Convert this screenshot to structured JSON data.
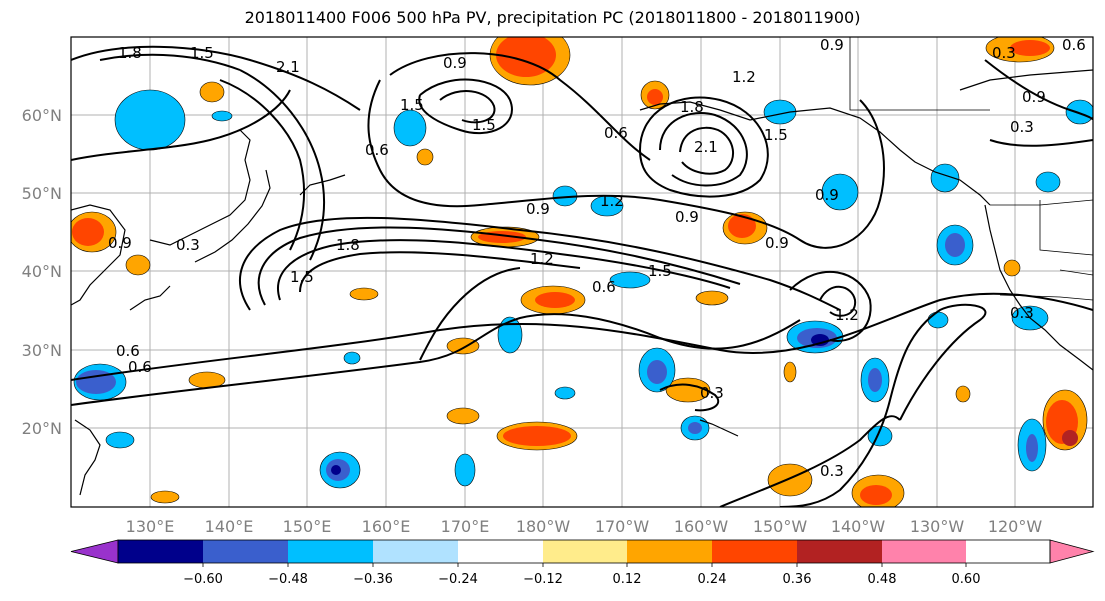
{
  "title": "2018011400 F006 500 hPa PV, precipitation PC (2018011800 - 2018011900)",
  "map": {
    "lat_labels": [
      "60°N",
      "50°N",
      "40°N",
      "30°N",
      "20°N"
    ],
    "lon_labels": [
      "130°E",
      "140°E",
      "150°E",
      "160°E",
      "170°E",
      "180°W",
      "170°W",
      "160°W",
      "150°W",
      "140°W",
      "130°W",
      "120°W"
    ],
    "contour_labels": [
      "1.8",
      "1.5",
      "2.1",
      "0.9",
      "1.2",
      "0.6",
      "0.3"
    ]
  },
  "colorbar": {
    "colors": [
      "#9932cc",
      "#00008b",
      "#3a5fcd",
      "#00bfff",
      "#b0e2ff",
      "#ffffff",
      "#ffec8b",
      "#ffa500",
      "#ff4500",
      "#b22222",
      "#ff82ab"
    ],
    "tick_labels": [
      "−0.60",
      "−0.48",
      "−0.36",
      "−0.24",
      "−0.12",
      "0.12",
      "0.24",
      "0.36",
      "0.48",
      "0.60"
    ]
  },
  "colors": {
    "grid": "#b0b0b0",
    "contour": "#000000",
    "coast": "#000000"
  }
}
